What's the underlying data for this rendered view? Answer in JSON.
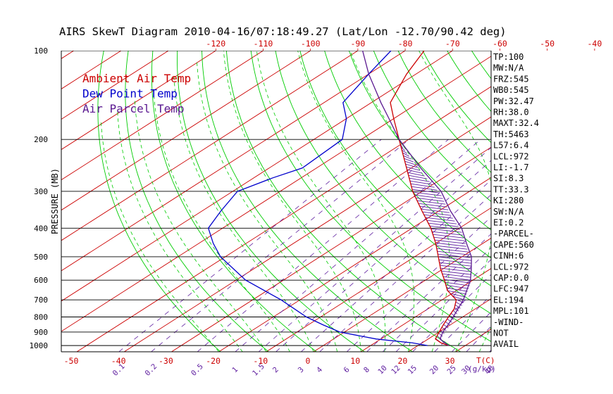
{
  "title": "AIRS SkewT Diagram 2010-04-16/07:18:49.27 (Lat/Lon -12.70/90.42 deg)",
  "chart_data": {
    "type": "line",
    "title": "AIRS SkewT Diagram 2010-04-16/07:18:49.27 (Lat/Lon -12.70/90.42 deg)",
    "ylabel": "PRESSURE (MB)",
    "xlabel": "T(C)",
    "yscale": "log",
    "ylim": [
      1050,
      100
    ],
    "y_ticks": [
      100,
      200,
      300,
      400,
      500,
      600,
      700,
      800,
      900,
      1000
    ],
    "top_ticks": [
      -120,
      -110,
      -100,
      -90,
      -80,
      -70,
      -60,
      -50,
      -40
    ],
    "bottom_temp_ticks": [
      -50,
      -40,
      -30,
      -20,
      -10,
      0,
      10,
      20,
      30
    ],
    "bottom_temp_unit": "T(C)",
    "mixing_ratio_labels": [
      "0.1",
      "0.2",
      "0.5",
      "1",
      "1.5",
      "2",
      "3",
      "4",
      "6",
      "8",
      "10",
      "12",
      "15",
      "20",
      "25",
      "30",
      "40"
    ],
    "mixing_ratio_values": [
      0.1,
      0.2,
      0.5,
      1,
      1.5,
      2,
      3,
      4,
      6,
      8,
      10,
      12,
      15,
      20,
      25,
      30,
      40
    ],
    "mixing_ratio_unit": "(g/kg)",
    "legend": [
      {
        "label": "Ambient Air Temp",
        "color": "#cc0000"
      },
      {
        "label": "Dew Point Temp",
        "color": "#0000cc"
      },
      {
        "label": "Air Parcel Temp",
        "color": "#5a1890"
      }
    ],
    "series": [
      {
        "name": "Ambient Air Temp",
        "color": "#cc0000",
        "points": [
          [
            1000,
            26.5
          ],
          [
            980,
            24
          ],
          [
            950,
            21.5
          ],
          [
            900,
            20
          ],
          [
            850,
            18.5
          ],
          [
            800,
            17
          ],
          [
            750,
            15.5
          ],
          [
            700,
            13
          ],
          [
            650,
            8
          ],
          [
            600,
            4
          ],
          [
            550,
            -0.5
          ],
          [
            500,
            -5
          ],
          [
            450,
            -10
          ],
          [
            400,
            -16
          ],
          [
            350,
            -23.5
          ],
          [
            300,
            -32
          ],
          [
            250,
            -41
          ],
          [
            200,
            -52
          ],
          [
            170,
            -60
          ],
          [
            150,
            -66
          ],
          [
            120,
            -72
          ],
          [
            100,
            -76
          ]
        ]
      },
      {
        "name": "Dew Point Temp",
        "color": "#0000cc",
        "points": [
          [
            1000,
            22
          ],
          [
            980,
            18
          ],
          [
            950,
            9
          ],
          [
            900,
            -1
          ],
          [
            850,
            -7
          ],
          [
            800,
            -13
          ],
          [
            700,
            -24
          ],
          [
            600,
            -38
          ],
          [
            500,
            -51
          ],
          [
            450,
            -57
          ],
          [
            400,
            -63
          ],
          [
            350,
            -66
          ],
          [
            300,
            -69
          ],
          [
            270,
            -66
          ],
          [
            250,
            -63
          ],
          [
            200,
            -64
          ],
          [
            170,
            -70
          ],
          [
            150,
            -76
          ],
          [
            120,
            -80
          ],
          [
            100,
            -83
          ]
        ]
      },
      {
        "name": "Air Parcel Temp",
        "color": "#5a1890",
        "points": [
          [
            1000,
            26.5
          ],
          [
            970,
            24
          ],
          [
            950,
            22.5
          ],
          [
            900,
            20.8
          ],
          [
            850,
            19.5
          ],
          [
            800,
            18
          ],
          [
            700,
            14.5
          ],
          [
            600,
            9.5
          ],
          [
            550,
            6
          ],
          [
            500,
            2
          ],
          [
            450,
            -3.5
          ],
          [
            400,
            -9.5
          ],
          [
            350,
            -17.5
          ],
          [
            300,
            -26
          ],
          [
            250,
            -38
          ],
          [
            200,
            -52
          ],
          [
            170,
            -61
          ],
          [
            150,
            -68
          ],
          [
            120,
            -80
          ],
          [
            100,
            -89
          ]
        ]
      }
    ],
    "indices": [
      "TP:100",
      "MW:N/A",
      "FRZ:545",
      "WB0:545",
      "PW:32.47",
      "RH:38.0",
      "MAXT:32.4",
      "TH:5463",
      "L57:6.4",
      "LCL:972",
      "LI:-1.7",
      "SI:8.3",
      "TT:33.3",
      "KI:280",
      "SW:N/A",
      "EI:0.2",
      "-PARCEL-",
      "CAPE:560",
      "CINH:6",
      "LCL:972",
      "CAP:0.0",
      "LFC:947",
      "EL:194",
      "MPL:101",
      "-WIND-",
      "NOT",
      "AVAIL"
    ],
    "colors": {
      "isotherm": "#cc0000",
      "dry_adiabat": "#00cc00",
      "moist_adiabat": "#00cc00",
      "mixing_ratio": "#6020a0",
      "text": "#000000",
      "axis_label": "#cc0000",
      "mixing_label": "#6020a0"
    }
  }
}
